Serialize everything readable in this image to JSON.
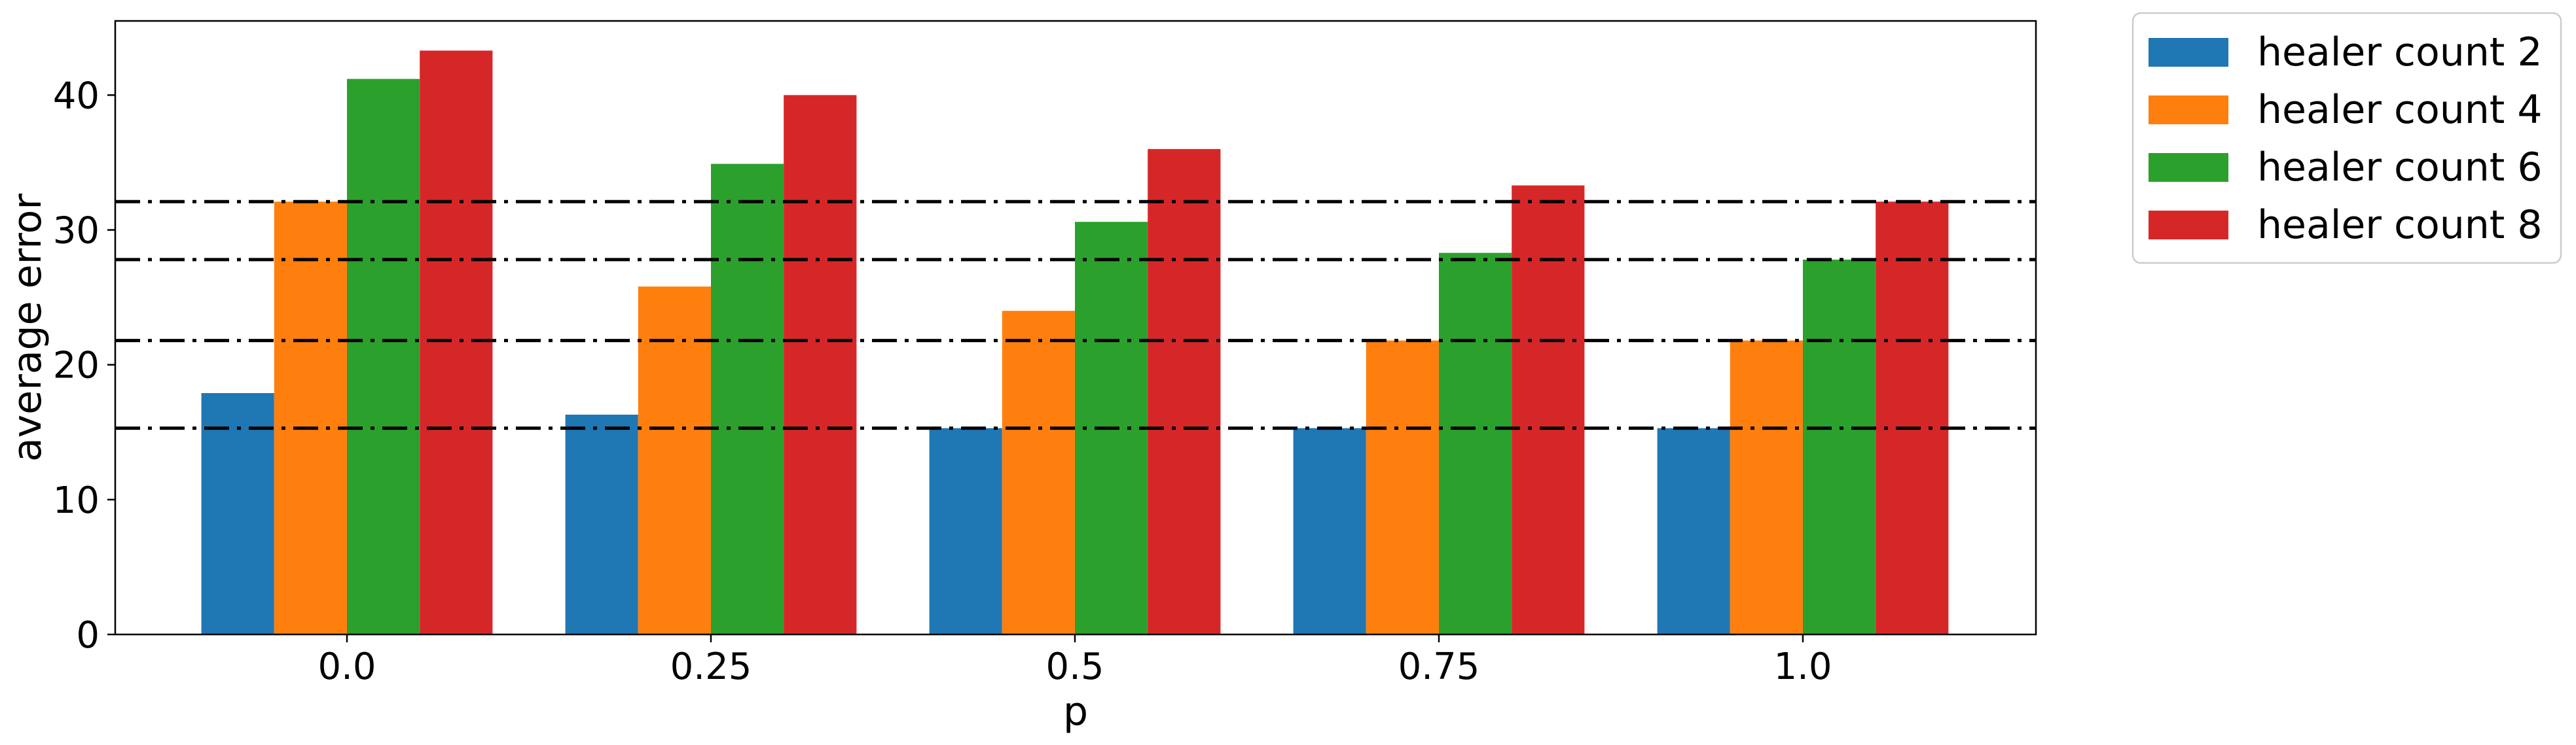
{
  "chart_data": {
    "type": "bar",
    "title": "",
    "xlabel": "p",
    "ylabel": "average error",
    "categories": [
      "0.0",
      "0.25",
      "0.5",
      "0.75",
      "1.0"
    ],
    "series": [
      {
        "name": "healer count 2",
        "color": "#1f77b4",
        "values": [
          17.9,
          16.3,
          15.3,
          15.3,
          15.3
        ]
      },
      {
        "name": "healer count 4",
        "color": "#ff7f0e",
        "values": [
          32.1,
          25.8,
          24.0,
          21.8,
          21.8
        ]
      },
      {
        "name": "healer count 6",
        "color": "#2ca02c",
        "values": [
          41.2,
          34.9,
          30.6,
          28.3,
          27.8
        ]
      },
      {
        "name": "healer count 8",
        "color": "#d62728",
        "values": [
          43.3,
          40.0,
          36.0,
          33.3,
          32.1
        ]
      }
    ],
    "reference_lines": {
      "style": "dash-dot",
      "color": "#000000",
      "values": [
        15.3,
        21.8,
        27.8,
        32.1
      ]
    },
    "ylim": [
      0,
      45.5
    ],
    "yticks": [
      0,
      10,
      20,
      30,
      40
    ],
    "grid": false,
    "legend_position": "outside upper right"
  }
}
